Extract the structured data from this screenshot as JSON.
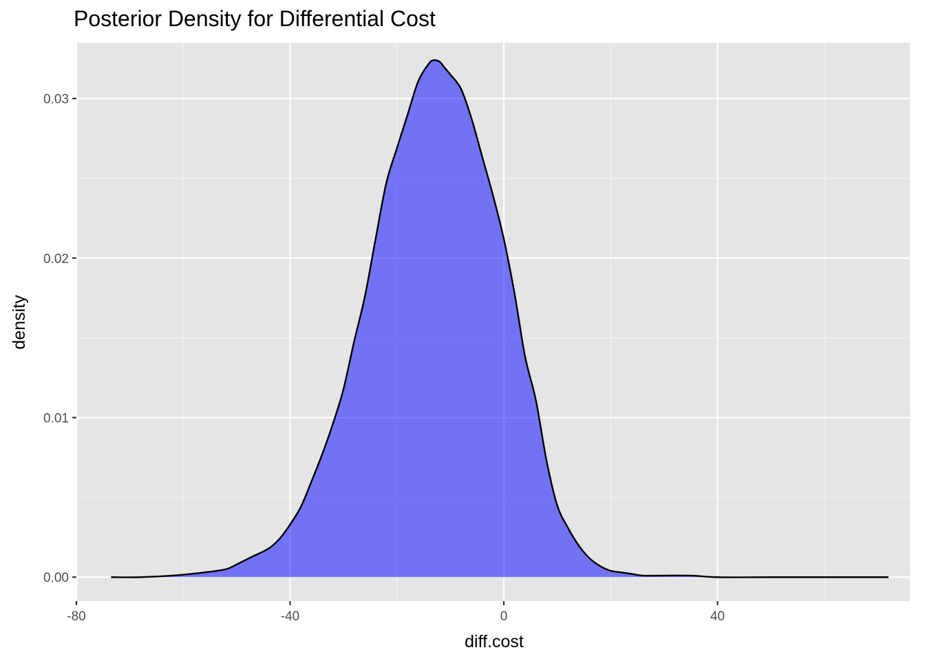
{
  "chart_data": {
    "type": "area",
    "title": "Posterior Density for Differential Cost",
    "xlabel": "diff.cost",
    "ylabel": "density",
    "xlim": [
      -80,
      76
    ],
    "ylim": [
      -0.0015,
      0.0335
    ],
    "x_ticks": [
      {
        "value": -80,
        "label": "-80"
      },
      {
        "value": -40,
        "label": "-40"
      },
      {
        "value": 0,
        "label": "0"
      },
      {
        "value": 40,
        "label": "40"
      }
    ],
    "y_ticks": [
      {
        "value": 0.0,
        "label": "0.00"
      },
      {
        "value": 0.01,
        "label": "0.01"
      },
      {
        "value": 0.02,
        "label": "0.02"
      },
      {
        "value": 0.03,
        "label": "0.03"
      }
    ],
    "grid": true,
    "panel_background": "#e5e5e5",
    "fill_color": "#0000ff",
    "fill_opacity": 0.5,
    "line_color": "#000000",
    "series": [
      {
        "x": [
          -73.5,
          -68,
          -62,
          -56,
          -52,
          -50,
          -47,
          -44,
          -42,
          -40,
          -38,
          -36,
          -34,
          -32,
          -30,
          -28,
          -26,
          -24,
          -22,
          -20,
          -18,
          -16,
          -14,
          -13,
          -12,
          -11,
          -10,
          -8,
          -6,
          -4,
          -2,
          0,
          2,
          4,
          6,
          8,
          10,
          12,
          14,
          16,
          18,
          20,
          22,
          24,
          26,
          30,
          35,
          40,
          50,
          60,
          72
        ],
        "y": [
          0.0,
          0.0,
          0.0001,
          0.0003,
          0.0005,
          0.0008,
          0.0013,
          0.0018,
          0.0024,
          0.0033,
          0.0044,
          0.006,
          0.0077,
          0.0096,
          0.0118,
          0.0148,
          0.0176,
          0.0212,
          0.0247,
          0.0269,
          0.029,
          0.0311,
          0.0322,
          0.0324,
          0.0323,
          0.0319,
          0.0315,
          0.0306,
          0.0287,
          0.0263,
          0.0239,
          0.0212,
          0.0178,
          0.0138,
          0.0111,
          0.0073,
          0.0045,
          0.0031,
          0.002,
          0.0012,
          0.0007,
          0.0004,
          0.0003,
          0.0002,
          0.0001,
          0.0001,
          0.0001,
          0.0,
          0.0,
          0.0,
          0.0
        ]
      }
    ]
  }
}
